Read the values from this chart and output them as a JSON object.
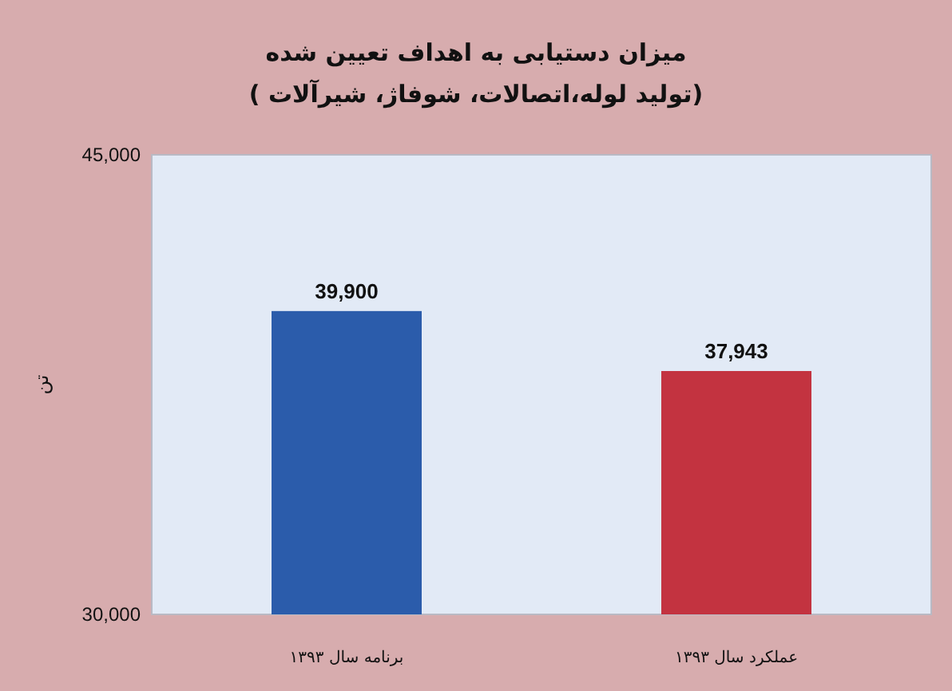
{
  "chart_data": {
    "type": "bar",
    "title": "میزان دستیابی به اهداف تعیین شده",
    "subtitle": "(تولید لوله،اتصالات، شوفاژ، شیرآلات )",
    "ylabel": "تن",
    "categories": [
      "برنامه سال ۱۳۹۳",
      "عملکرد سال ۱۳۹۳"
    ],
    "values": [
      39900,
      37943
    ],
    "colors": [
      "#2b5cab",
      "#c33340"
    ],
    "ylim": [
      30000,
      45000
    ],
    "yticks": [
      {
        "value": 30000,
        "label": "30,000"
      },
      {
        "value": 45000,
        "label": "45,000"
      }
    ],
    "value_labels": [
      "39,900",
      "37,943"
    ],
    "grid": false
  }
}
